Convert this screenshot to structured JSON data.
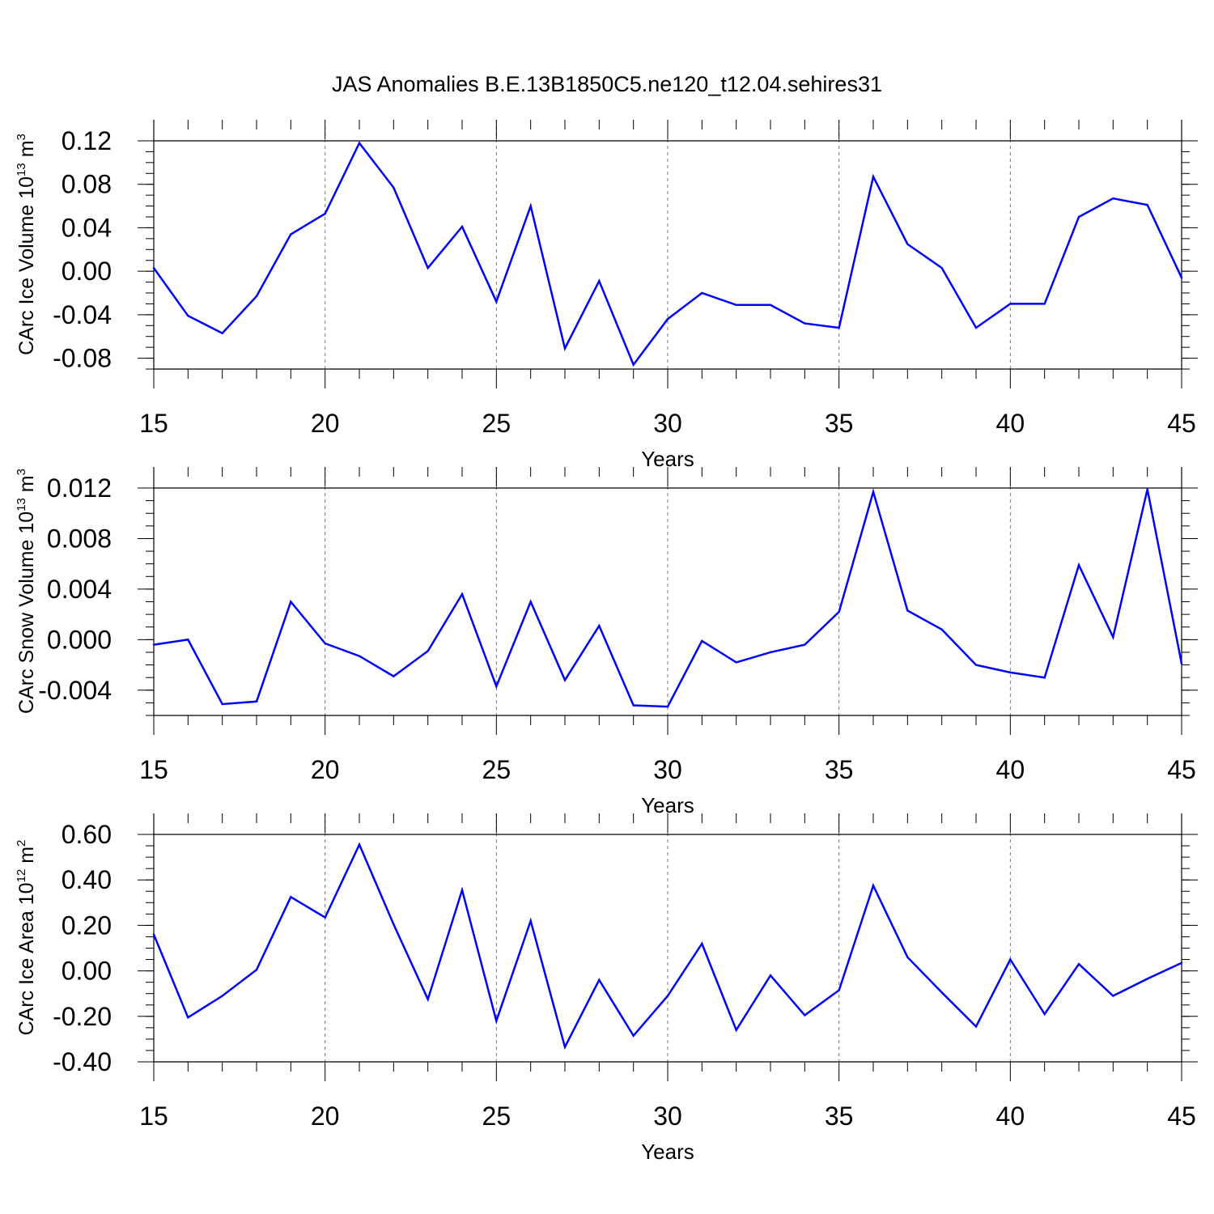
{
  "title": "JAS Anomalies B.E.13B1850C5.ne120_t12.04.sehires31",
  "line_color": "#0000ff",
  "chart_data": [
    {
      "type": "line",
      "xlabel": "Years",
      "ylabel_text": "CArc Ice Volume 10",
      "ylabel_exp": "13",
      "ylabel_unit": " m",
      "ylabel_unit_exp": "3",
      "xlim": [
        15,
        45
      ],
      "ylim": [
        -0.09,
        0.12
      ],
      "x_ticks": [
        15,
        20,
        25,
        30,
        35,
        40,
        45
      ],
      "x_tick_labels": [
        "15",
        "20",
        "25",
        "30",
        "35",
        "40",
        "45"
      ],
      "y_ticks": [
        -0.08,
        -0.04,
        0.0,
        0.04,
        0.08,
        0.12
      ],
      "y_tick_labels": [
        "-0.08",
        "-0.04",
        "0.00",
        "0.04",
        "0.08",
        "0.12"
      ],
      "y_minor_step": 0.01,
      "grid": "vertical dashed at major x ticks",
      "x": [
        15,
        16,
        17,
        18,
        19,
        20,
        21,
        22,
        23,
        24,
        25,
        26,
        27,
        28,
        29,
        30,
        31,
        32,
        33,
        34,
        35,
        36,
        37,
        38,
        39,
        40,
        41,
        42,
        43,
        44,
        45
      ],
      "values": [
        0.003,
        -0.041,
        -0.057,
        -0.023,
        0.034,
        0.053,
        0.118,
        0.077,
        0.003,
        0.041,
        -0.028,
        0.06,
        -0.071,
        -0.009,
        -0.086,
        -0.044,
        -0.02,
        -0.031,
        -0.031,
        -0.048,
        -0.052,
        0.087,
        0.025,
        0.003,
        -0.052,
        -0.03,
        -0.03,
        0.05,
        0.067,
        0.061,
        -0.006
      ]
    },
    {
      "type": "line",
      "xlabel": "Years",
      "ylabel_text": "CArc Snow Volume 10",
      "ylabel_exp": "13",
      "ylabel_unit": " m",
      "ylabel_unit_exp": "3",
      "xlim": [
        15,
        45
      ],
      "ylim": [
        -0.006,
        0.012
      ],
      "x_ticks": [
        15,
        20,
        25,
        30,
        35,
        40,
        45
      ],
      "x_tick_labels": [
        "15",
        "20",
        "25",
        "30",
        "35",
        "40",
        "45"
      ],
      "y_ticks": [
        -0.004,
        0.0,
        0.004,
        0.008,
        0.012
      ],
      "y_tick_labels": [
        "-0.004",
        "0.000",
        "0.004",
        "0.008",
        "0.012"
      ],
      "y_minor_step": 0.001,
      "grid": "vertical dashed at major x ticks",
      "x": [
        15,
        16,
        17,
        18,
        19,
        20,
        21,
        22,
        23,
        24,
        25,
        26,
        27,
        28,
        29,
        30,
        31,
        32,
        33,
        34,
        35,
        36,
        37,
        38,
        39,
        40,
        41,
        42,
        43,
        44,
        45
      ],
      "values": [
        -0.0004,
        0.0,
        -0.0051,
        -0.0049,
        0.003,
        -0.0003,
        -0.0013,
        -0.0029,
        -0.0009,
        0.0036,
        -0.0037,
        0.003,
        -0.0032,
        0.0011,
        -0.0052,
        -0.0053,
        -0.0001,
        -0.0018,
        -0.001,
        -0.0004,
        0.0022,
        0.0117,
        0.0023,
        0.0008,
        -0.002,
        -0.0026,
        -0.003,
        0.0059,
        0.0002,
        0.0119,
        -0.0019
      ]
    },
    {
      "type": "line",
      "xlabel": "Years",
      "ylabel_text": "CArc Ice Area 10",
      "ylabel_exp": "12",
      "ylabel_unit": " m",
      "ylabel_unit_exp": "2",
      "xlim": [
        15,
        45
      ],
      "ylim": [
        -0.4,
        0.6
      ],
      "x_ticks": [
        15,
        20,
        25,
        30,
        35,
        40,
        45
      ],
      "x_tick_labels": [
        "15",
        "20",
        "25",
        "30",
        "35",
        "40",
        "45"
      ],
      "y_ticks": [
        -0.4,
        -0.2,
        0.0,
        0.2,
        0.4,
        0.6
      ],
      "y_tick_labels": [
        "-0.40",
        "-0.20",
        "0.00",
        "0.20",
        "0.40",
        "0.60"
      ],
      "y_minor_step": 0.05,
      "grid": "vertical dashed at major x ticks",
      "x": [
        15,
        16,
        17,
        18,
        19,
        20,
        21,
        22,
        23,
        24,
        25,
        26,
        27,
        28,
        29,
        30,
        31,
        32,
        33,
        34,
        35,
        36,
        37,
        38,
        39,
        40,
        41,
        42,
        43,
        44,
        45
      ],
      "values": [
        0.16,
        -0.205,
        -0.11,
        0.005,
        0.325,
        0.235,
        0.555,
        0.205,
        -0.125,
        0.355,
        -0.22,
        0.22,
        -0.335,
        -0.04,
        -0.285,
        -0.11,
        0.12,
        -0.26,
        -0.02,
        -0.195,
        -0.085,
        0.375,
        0.06,
        -0.095,
        -0.245,
        0.05,
        -0.19,
        0.03,
        -0.11,
        -0.035,
        0.035
      ]
    }
  ]
}
